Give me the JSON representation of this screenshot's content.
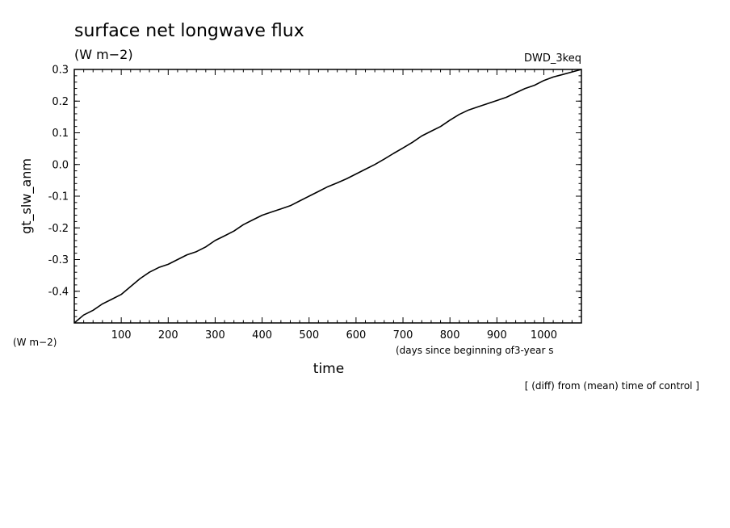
{
  "chart_data": {
    "type": "line",
    "title": "surface net longwave flux",
    "units_label": "(W m−2)",
    "case_label": "DWD_3keq",
    "ylabel": "gt_slw_anm",
    "xlabel": "time",
    "x_units_label": "(days since beginning of3-year s",
    "y_units_label": "(W m−2)",
    "footnote": "[ (diff) from (mean) time of control ]",
    "xlim": [
      0,
      1080
    ],
    "ylim": [
      -0.5,
      0.3
    ],
    "x_ticks": [
      100,
      200,
      300,
      400,
      500,
      600,
      700,
      800,
      900,
      1000
    ],
    "y_ticks": [
      "-0.4",
      "-0.3",
      "-0.2",
      "-0.1",
      "0.0",
      "0.1",
      "0.2",
      "0.3"
    ],
    "grid": false,
    "series": [
      {
        "x": [
          0,
          20,
          40,
          60,
          80,
          100,
          120,
          140,
          160,
          180,
          200,
          220,
          240,
          260,
          280,
          300,
          320,
          340,
          360,
          380,
          400,
          420,
          440,
          460,
          480,
          500,
          520,
          540,
          560,
          580,
          600,
          620,
          640,
          660,
          680,
          700,
          720,
          740,
          760,
          780,
          800,
          820,
          840,
          860,
          880,
          900,
          920,
          940,
          960,
          980,
          1000,
          1020,
          1040,
          1060,
          1080
        ],
        "y": [
          -0.5,
          -0.475,
          -0.46,
          -0.44,
          -0.425,
          -0.41,
          -0.385,
          -0.36,
          -0.34,
          -0.325,
          -0.315,
          -0.3,
          -0.285,
          -0.275,
          -0.26,
          -0.24,
          -0.225,
          -0.21,
          -0.19,
          -0.175,
          -0.16,
          -0.15,
          -0.14,
          -0.13,
          -0.115,
          -0.1,
          -0.085,
          -0.07,
          -0.058,
          -0.045,
          -0.03,
          -0.015,
          0.0,
          0.017,
          0.035,
          0.052,
          0.07,
          0.09,
          0.105,
          0.12,
          0.14,
          0.158,
          0.172,
          0.182,
          0.192,
          0.202,
          0.212,
          0.226,
          0.24,
          0.25,
          0.265,
          0.276,
          0.284,
          0.292,
          0.3
        ],
        "color": "#000000"
      }
    ]
  }
}
